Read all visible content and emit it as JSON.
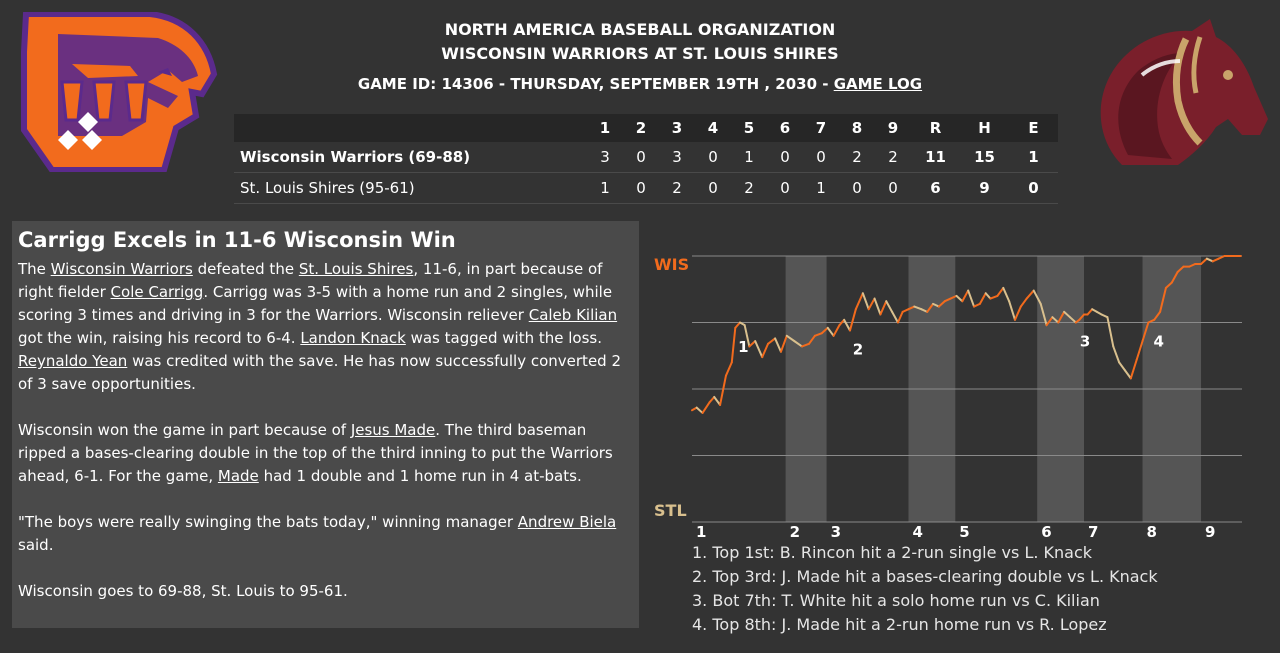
{
  "header": {
    "line1": "NORTH AMERICA BASEBALL ORGANIZATION",
    "line2": "WISCONSIN WARRIORS AT ST. LOUIS SHIRES",
    "game_info": "GAME ID: 14306 - THURSDAY, SEPTEMBER 19TH , 2030 - ",
    "game_log_link": "GAME LOG"
  },
  "logos": {
    "left": "warriors-logo",
    "right": "shires-horse-logo",
    "left_colors": {
      "primary": "#f26b1d",
      "secondary": "#5b2a8c"
    },
    "right_colors": {
      "primary": "#7a1f2b",
      "secondary": "#c9a46a"
    }
  },
  "boxscore": {
    "innings": [
      "1",
      "2",
      "3",
      "4",
      "5",
      "6",
      "7",
      "8",
      "9"
    ],
    "totals_headers": [
      "R",
      "H",
      "E"
    ],
    "teams": [
      {
        "name": "Wisconsin Warriors (69-88)",
        "innings": [
          "3",
          "0",
          "3",
          "0",
          "1",
          "0",
          "0",
          "2",
          "2"
        ],
        "R": "11",
        "H": "15",
        "E": "1"
      },
      {
        "name": "St. Louis Shires (95-61)",
        "innings": [
          "1",
          "0",
          "2",
          "0",
          "2",
          "0",
          "1",
          "0",
          "0"
        ],
        "R": "6",
        "H": "9",
        "E": "0"
      }
    ]
  },
  "article": {
    "headline": "Carrigg Excels in 11-6 Wisconsin Win",
    "p1": {
      "t1": "The ",
      "l1": "Wisconsin Warriors",
      "t2": " defeated the ",
      "l2": "St. Louis Shires",
      "t3": ", 11-6, in part because of right fielder ",
      "l3": "Cole Carrigg",
      "t4": ". Carrigg was 3-5 with a home run and 2 singles, while scoring 3 times and driving in 3 for the Warriors. Wisconsin reliever ",
      "l4": "Caleb Kilian",
      "t5": " got the win, raising his record to 6-4. ",
      "l5": "Landon Knack",
      "t6": " was tagged with the loss. ",
      "l6": "Reynaldo Yean",
      "t7": " was credited with the save. He has now successfully converted 2 of 3 save opportunities."
    },
    "p2": {
      "t1": "Wisconsin won the game in part because of ",
      "l1": "Jesus Made",
      "t2": ". The third baseman ripped a bases-clearing double in the top of the third inning to put the Warriors ahead, 6-1. For the game, ",
      "l2": "Made",
      "t3": " had 1 double and 1 home run in 4 at-bats."
    },
    "p3": {
      "t1": "\"The boys were really swinging the bats today,\" winning manager ",
      "l1": "Andrew Biela",
      "t2": " said."
    },
    "p4": "Wisconsin goes to 69-88, St. Louis to 95-61."
  },
  "chart_data": {
    "type": "line",
    "title": "",
    "y_top_label": "WIS",
    "y_bottom_label": "STL",
    "x_labels": [
      "1",
      "2",
      "3",
      "4",
      "5",
      "6",
      "7",
      "8",
      "9"
    ],
    "ylim": [
      0,
      100
    ],
    "colors": {
      "wis": "#f26b1d",
      "stl": "#d9c08e",
      "stripe": "#555555"
    },
    "innings_x": [
      0,
      1.6,
      2.3,
      3.7,
      4.5,
      5.9,
      6.7,
      7.7,
      8.7,
      9.4
    ],
    "series": [
      {
        "name": "",
        "x": [
          0.0,
          0.08,
          0.18,
          0.3,
          0.38,
          0.48,
          0.58,
          0.68,
          0.74,
          0.82,
          0.9,
          0.98,
          1.08,
          1.2,
          1.3,
          1.42,
          1.52,
          1.62,
          1.75,
          1.88,
          2.0,
          2.1,
          2.22,
          2.32,
          2.42,
          2.52,
          2.6,
          2.7,
          2.8,
          2.92,
          3.02,
          3.12,
          3.22,
          3.32,
          3.42,
          3.52,
          3.6,
          3.7,
          3.8,
          3.92,
          4.02,
          4.12,
          4.22,
          4.32,
          4.42,
          4.52,
          4.62,
          4.72,
          4.82,
          4.92,
          5.02,
          5.1,
          5.22,
          5.32,
          5.42,
          5.52,
          5.62,
          5.72,
          5.84,
          5.96,
          6.06,
          6.16,
          6.26,
          6.36,
          6.46,
          6.56,
          6.62,
          6.7,
          6.76,
          6.84,
          6.92,
          7.0,
          7.1,
          7.2,
          7.3,
          7.4,
          7.5,
          7.6,
          7.7,
          7.8,
          7.9,
          8.0,
          8.1,
          8.2,
          8.3,
          8.4,
          8.5,
          8.6,
          8.7,
          8.8,
          8.9,
          9.0,
          9.1,
          9.2,
          9.3,
          9.38
        ],
        "values": [
          42,
          43,
          41,
          45,
          47,
          44,
          55,
          60,
          73,
          75,
          74,
          66,
          68,
          62,
          67,
          69,
          64,
          70,
          68,
          66,
          67,
          70,
          71,
          73,
          70,
          74,
          76,
          72,
          80,
          86,
          80,
          84,
          78,
          83,
          79,
          75,
          79,
          80,
          81,
          80,
          79,
          82,
          81,
          83,
          84,
          85,
          83,
          87,
          81,
          82,
          86,
          84,
          85,
          88,
          83,
          76,
          81,
          84,
          87,
          82,
          74,
          77,
          75,
          79,
          77,
          75,
          76,
          78,
          78,
          80,
          79,
          78,
          77,
          66,
          60,
          57,
          54,
          61,
          68,
          75,
          76,
          79,
          88,
          90,
          94,
          96,
          96,
          97,
          97,
          99,
          98,
          99,
          100,
          100,
          100,
          100
        ]
      }
    ],
    "annotations": [
      {
        "label": "1",
        "x": 0.72
      },
      {
        "label": "2",
        "x": 2.68
      },
      {
        "label": "3",
        "x": 6.56
      },
      {
        "label": "4",
        "x": 7.82
      }
    ]
  },
  "events": [
    "1. Top 1st: B. Rincon hit a 2-run single vs L. Knack",
    "2. Top 3rd: J. Made hit a bases-clearing double vs L. Knack",
    "3. Bot 7th: T. White hit a solo home run vs C. Kilian",
    "4. Top 8th: J. Made hit a 2-run home run vs R. Lopez"
  ]
}
